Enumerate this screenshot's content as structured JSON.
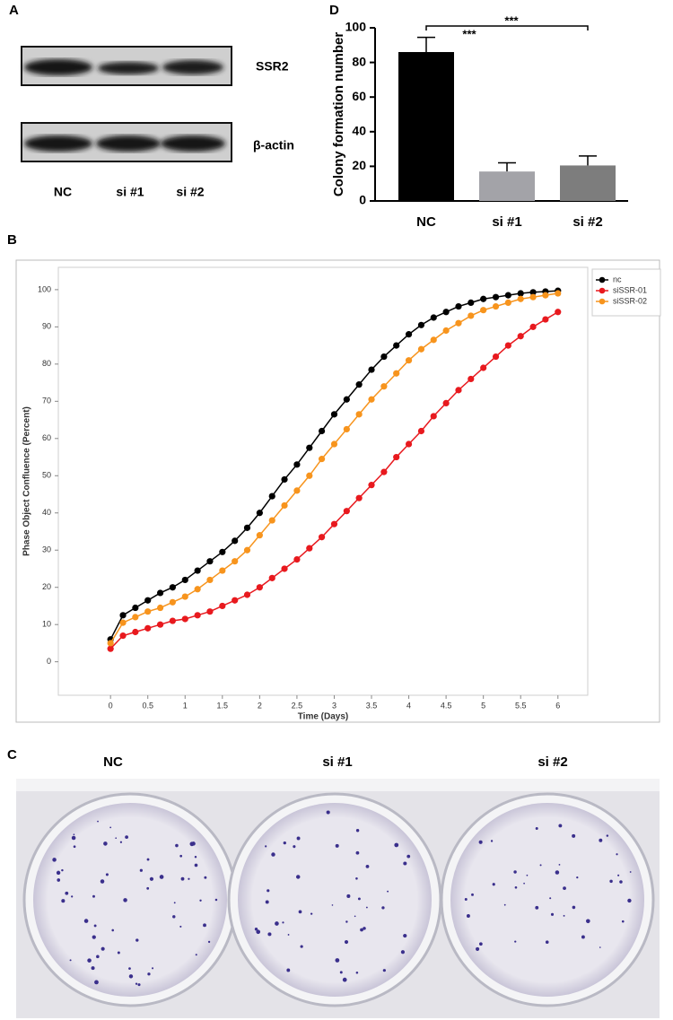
{
  "blot": {
    "label": "A",
    "bands": [
      "SSR2",
      "β-actin"
    ],
    "lanes": [
      "NC",
      "si #1",
      "si #2"
    ]
  },
  "plate": {
    "label": "C",
    "wells": [
      "NC",
      "si #1",
      "si #2"
    ]
  },
  "chart_data": [
    {
      "type": "bar",
      "label": "D",
      "ylabel": "Colony formation number",
      "categories": [
        "NC",
        "si #1",
        "si #2"
      ],
      "values": [
        86,
        17,
        20.5
      ],
      "errors": [
        8.5,
        5,
        5.5
      ],
      "colors": [
        "#000000",
        "#a3a3a8",
        "#7d7d7d"
      ],
      "ylim": [
        0,
        100
      ],
      "yticks": [
        0,
        20,
        40,
        60,
        80,
        100
      ],
      "annotations": [
        "***",
        "***"
      ]
    },
    {
      "type": "line",
      "label": "B",
      "xlabel": "Time (Days)",
      "ylabel": "Phase Object Confluence (Percent)",
      "x": [
        0,
        0.167,
        0.333,
        0.5,
        0.667,
        0.833,
        1,
        1.167,
        1.333,
        1.5,
        1.667,
        1.833,
        2,
        2.167,
        2.333,
        2.5,
        2.667,
        2.833,
        3,
        3.167,
        3.333,
        3.5,
        3.667,
        3.833,
        4,
        4.167,
        4.333,
        4.5,
        4.667,
        4.833,
        5,
        5.167,
        5.333,
        5.5,
        5.667,
        5.833,
        6
      ],
      "series": [
        {
          "name": "nc",
          "color": "#000000",
          "values": [
            6,
            12.5,
            14.5,
            16.5,
            18.5,
            20,
            22,
            24.5,
            27,
            29.5,
            32.5,
            36,
            40,
            44.5,
            49,
            53,
            57.5,
            62,
            66.5,
            70.5,
            74.5,
            78.5,
            82,
            85,
            88,
            90.5,
            92.5,
            94,
            95.5,
            96.5,
            97.5,
            98,
            98.5,
            99,
            99.3,
            99.5,
            99.7
          ]
        },
        {
          "name": "siSSR-01",
          "color": "#e8191e",
          "values": [
            3.5,
            7,
            8,
            9,
            10,
            11,
            11.5,
            12.5,
            13.5,
            15,
            16.5,
            18,
            20,
            22.5,
            25,
            27.5,
            30.5,
            33.5,
            37,
            40.5,
            44,
            47.5,
            51,
            55,
            58.5,
            62,
            66,
            69.5,
            73,
            76,
            79,
            82,
            85,
            87.5,
            90,
            92,
            94
          ]
        },
        {
          "name": "siSSR-02",
          "color": "#f7941d",
          "values": [
            5,
            10.5,
            12,
            13.5,
            14.5,
            16,
            17.5,
            19.5,
            22,
            24.5,
            27,
            30,
            34,
            38,
            42,
            46,
            50,
            54.5,
            58.5,
            62.5,
            66.5,
            70.5,
            74,
            77.5,
            81,
            84,
            86.5,
            89,
            91,
            93,
            94.5,
            95.5,
            96.5,
            97.5,
            98,
            98.5,
            99
          ]
        }
      ],
      "xlim": [
        -0.7,
        6.4
      ],
      "xticks": [
        0,
        0.5,
        1,
        1.5,
        2,
        2.5,
        3,
        3.5,
        4,
        4.5,
        5,
        5.5,
        6
      ],
      "ylim": [
        -9,
        106
      ],
      "yticks": [
        0,
        10,
        20,
        30,
        40,
        50,
        60,
        70,
        80,
        90,
        100
      ],
      "legend": "top-right"
    }
  ]
}
